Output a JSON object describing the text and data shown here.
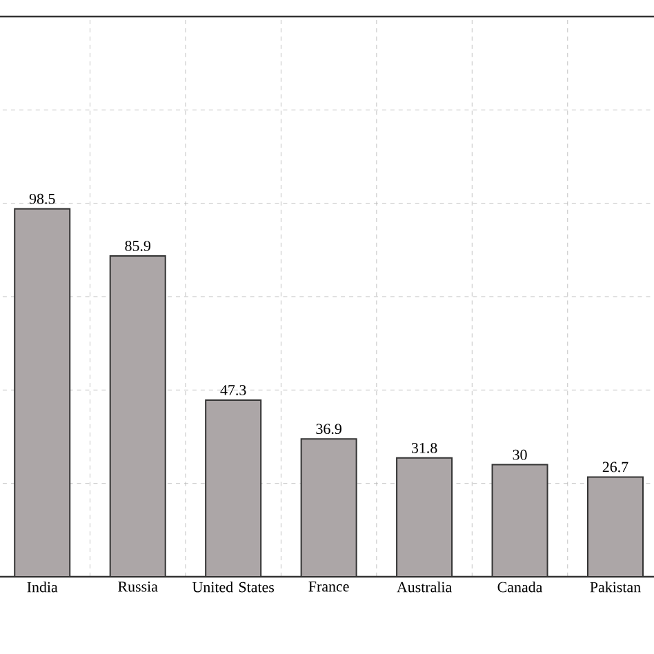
{
  "chart_data": {
    "type": "bar",
    "categories": [
      "India",
      "Russia",
      "United States",
      "France",
      "Australia",
      "Canada",
      "Pakistan"
    ],
    "values": [
      98.5,
      85.9,
      47.3,
      36.9,
      31.8,
      30,
      26.7
    ],
    "color": "#aca6a7",
    "ylim": [
      0,
      150
    ],
    "yticks": [
      {
        "value": 0,
        "label": null
      },
      {
        "value": 25,
        "label": null
      },
      {
        "value": 50,
        "label": null
      },
      {
        "value": 75,
        "label": null
      },
      {
        "value": 100,
        "label": null
      },
      {
        "value": 125,
        "label": null
      },
      {
        "value": 150,
        "label": null
      }
    ],
    "tick_labels": "x",
    "grid": true,
    "data_labels": true
  }
}
